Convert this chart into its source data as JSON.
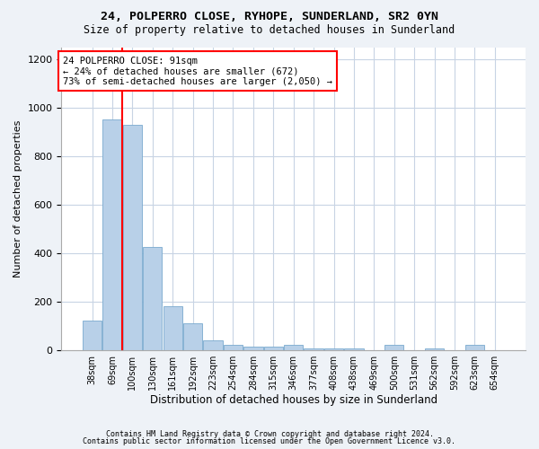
{
  "title1": "24, POLPERRO CLOSE, RYHOPE, SUNDERLAND, SR2 0YN",
  "title2": "Size of property relative to detached houses in Sunderland",
  "xlabel": "Distribution of detached houses by size in Sunderland",
  "ylabel": "Number of detached properties",
  "categories": [
    "38sqm",
    "69sqm",
    "100sqm",
    "130sqm",
    "161sqm",
    "192sqm",
    "223sqm",
    "254sqm",
    "284sqm",
    "315sqm",
    "346sqm",
    "377sqm",
    "408sqm",
    "438sqm",
    "469sqm",
    "500sqm",
    "531sqm",
    "562sqm",
    "592sqm",
    "623sqm",
    "654sqm"
  ],
  "values": [
    120,
    950,
    930,
    425,
    180,
    110,
    40,
    20,
    15,
    15,
    20,
    5,
    5,
    5,
    0,
    20,
    0,
    5,
    0,
    20,
    0
  ],
  "bar_color": "#b8d0e8",
  "bar_edge_color": "#7aaacf",
  "annotation_line1": "24 POLPERRO CLOSE: 91sqm",
  "annotation_line2": "← 24% of detached houses are smaller (672)",
  "annotation_line3": "73% of semi-detached houses are larger (2,050) →",
  "annotation_box_color": "white",
  "annotation_box_edge_color": "red",
  "vline_color": "red",
  "ylim": [
    0,
    1250
  ],
  "yticks": [
    0,
    200,
    400,
    600,
    800,
    1000,
    1200
  ],
  "footer1": "Contains HM Land Registry data © Crown copyright and database right 2024.",
  "footer2": "Contains public sector information licensed under the Open Government Licence v3.0.",
  "bg_color": "#eef2f7",
  "plot_bg_color": "white",
  "grid_color": "#c8d4e4",
  "vline_x_index": 1.5
}
